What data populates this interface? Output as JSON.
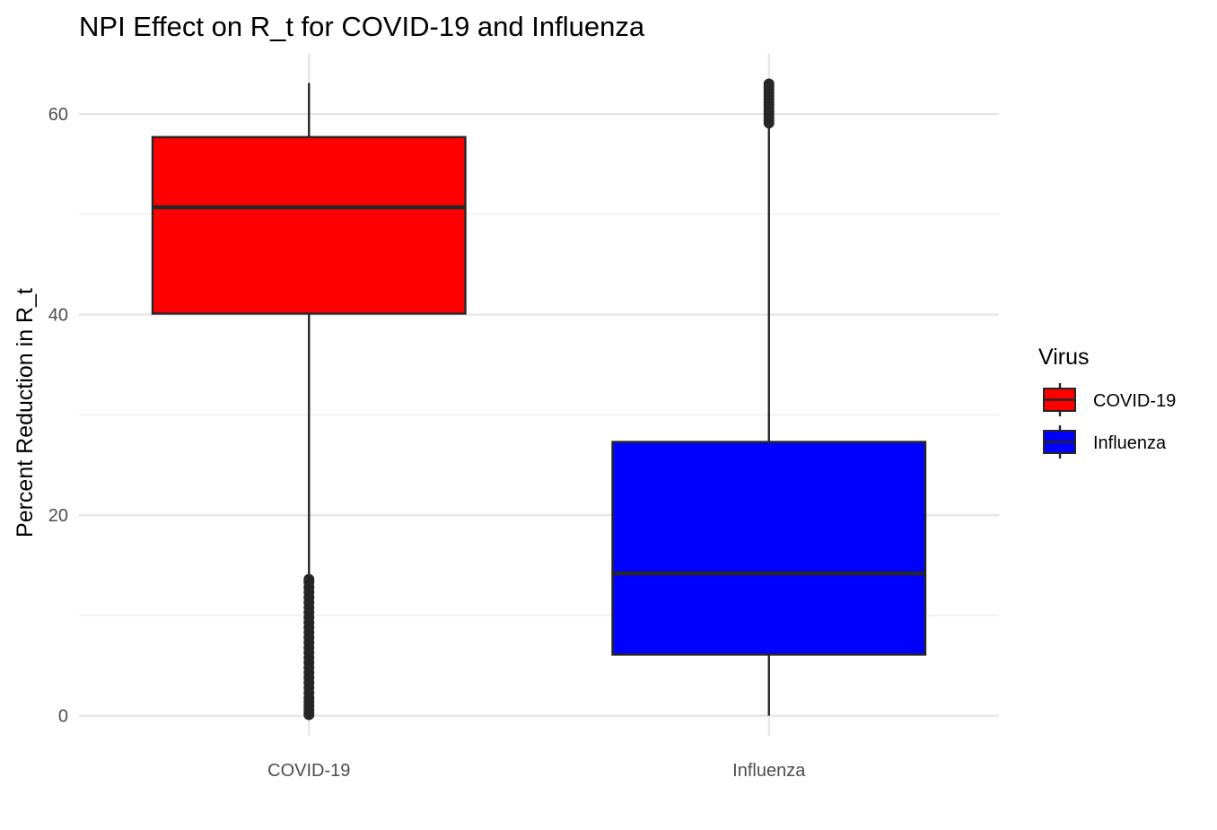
{
  "chart_data": {
    "type": "box",
    "title": "NPI Effect on R_t for COVID-19 and Influenza",
    "xlabel": "",
    "ylabel": "Percent Reduction in R_t",
    "ylim": [
      -2,
      66
    ],
    "yticks": [
      0,
      20,
      40,
      60
    ],
    "minor_yticks": [
      10,
      30,
      50
    ],
    "grid": true,
    "categories": [
      "COVID-19",
      "Influenza"
    ],
    "legend": {
      "title": "Virus",
      "position": "right"
    },
    "series": [
      {
        "name": "COVID-19",
        "color": "#ff0000",
        "q1": 40.1,
        "median": 50.7,
        "q3": 57.7,
        "whisker_low": 13.8,
        "whisker_high": 63.1,
        "outliers": [
          0.1,
          0.3,
          0.6,
          1.0,
          1.4,
          1.8,
          2.3,
          2.8,
          3.3,
          3.8,
          4.3,
          4.8,
          5.3,
          5.8,
          6.3,
          6.8,
          7.3,
          7.8,
          8.3,
          8.8,
          9.3,
          9.8,
          10.3,
          10.8,
          11.3,
          11.8,
          12.3,
          12.8,
          13.3,
          13.6
        ]
      },
      {
        "name": "Influenza",
        "color": "#0000ff",
        "q1": 6.1,
        "median": 14.2,
        "q3": 27.3,
        "whisker_low": 0.0,
        "whisker_high": 58.9,
        "outliers": [
          59.1,
          59.4,
          59.7,
          60.0,
          60.3,
          60.6,
          60.9,
          61.2,
          61.5,
          61.8,
          62.1,
          62.4,
          62.7,
          63.0
        ]
      }
    ]
  }
}
